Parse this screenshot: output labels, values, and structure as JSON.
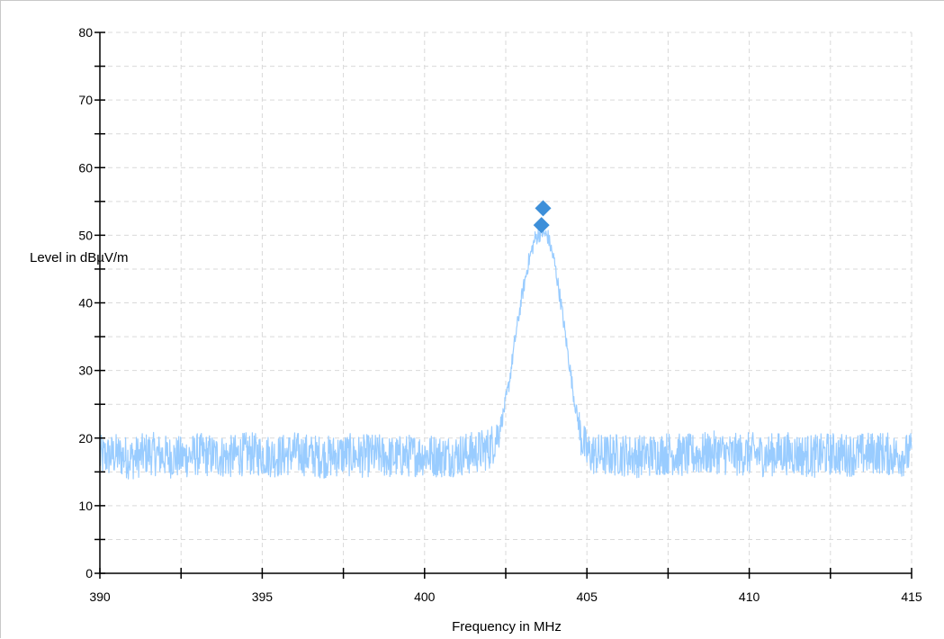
{
  "chart_data": {
    "type": "line",
    "title": "",
    "xlabel": "Frequency in MHz",
    "ylabel": "Level in dBµV/m",
    "xlim": [
      390,
      415
    ],
    "ylim": [
      0,
      80
    ],
    "x_ticks": [
      390,
      395,
      400,
      405,
      410,
      415
    ],
    "y_ticks": [
      0,
      10,
      20,
      30,
      40,
      50,
      60,
      70,
      80
    ],
    "x_minor_step": 2.5,
    "y_minor_step": 5,
    "grid": true,
    "legend": "none",
    "series": [
      {
        "color": "#99ccff",
        "x": [
          390.0,
          390.5,
          391.0,
          391.5,
          392.0,
          392.5,
          393.0,
          393.5,
          394.0,
          394.5,
          395.0,
          395.5,
          396.0,
          396.5,
          397.0,
          397.5,
          398.0,
          398.5,
          399.0,
          399.5,
          400.0,
          400.5,
          401.0,
          401.5,
          402.0,
          402.2,
          402.4,
          402.6,
          402.8,
          403.0,
          403.2,
          403.4,
          403.6,
          403.8,
          404.0,
          404.2,
          404.4,
          404.6,
          404.8,
          405.0,
          405.5,
          406.0,
          406.5,
          407.0,
          407.5,
          408.0,
          408.5,
          409.0,
          409.5,
          410.0,
          410.5,
          411.0,
          411.5,
          412.0,
          412.5,
          413.0,
          413.5,
          414.0,
          414.5,
          415.0
        ],
        "y": [
          17.2,
          17.5,
          17.0,
          17.8,
          17.3,
          17.1,
          17.6,
          17.4,
          17.2,
          17.7,
          17.5,
          17.3,
          17.8,
          17.4,
          17.2,
          17.6,
          17.3,
          17.5,
          17.1,
          17.4,
          17.6,
          17.3,
          17.5,
          17.8,
          18.5,
          20.0,
          23.0,
          28.0,
          35.0,
          41.0,
          46.0,
          49.5,
          50.5,
          49.8,
          46.0,
          40.0,
          33.0,
          26.0,
          20.5,
          17.8,
          17.4,
          17.6,
          17.3,
          17.5,
          17.8,
          17.4,
          17.6,
          17.9,
          17.5,
          17.7,
          17.4,
          17.8,
          17.6,
          17.3,
          17.7,
          17.5,
          17.6,
          17.9,
          17.4,
          17.6
        ]
      }
    ],
    "markers": [
      {
        "x": 403.65,
        "y": 54.0,
        "color": "#3d8fd9"
      },
      {
        "x": 403.6,
        "y": 51.5,
        "color": "#3d8fd9"
      }
    ]
  }
}
